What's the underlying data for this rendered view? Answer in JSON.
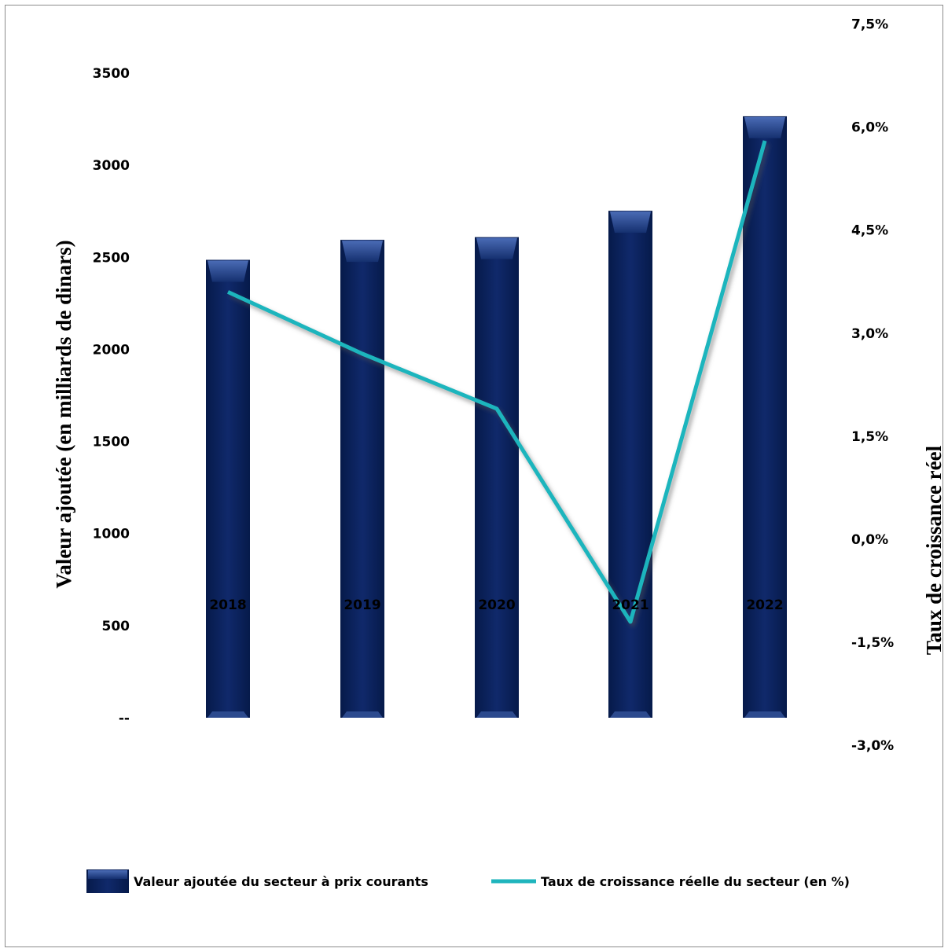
{
  "chart_data": {
    "type": "bar",
    "categories": [
      "2018",
      "2019",
      "2020",
      "2021",
      "2022"
    ],
    "series": [
      {
        "name": "Valeur ajoutée du secteur à prix courants",
        "kind": "bar",
        "axis": "left",
        "color": "#0b2563",
        "values": [
          2520,
          2630,
          2645,
          2790,
          3310
        ]
      },
      {
        "name": "Taux de croissance réelle du secteur (en %)",
        "kind": "line",
        "axis": "right",
        "color": "#1fb5bd",
        "values": [
          3.6,
          2.7,
          1.9,
          -1.2,
          5.8
        ]
      }
    ],
    "ylabel": "Valeur ajoutée (en milliards de dinars)",
    "ylabel_right": "Taux de croissance réel",
    "y_ticks": [
      {
        "value": 0,
        "label": "--"
      },
      {
        "value": 500,
        "label": "500"
      },
      {
        "value": 1000,
        "label": "1000"
      },
      {
        "value": 1500,
        "label": "1500"
      },
      {
        "value": 2000,
        "label": "2000"
      },
      {
        "value": 2500,
        "label": "2500"
      },
      {
        "value": 3000,
        "label": "3000"
      },
      {
        "value": 3500,
        "label": "3500"
      }
    ],
    "y_right_ticks": [
      {
        "value": -3.0,
        "label": "-3,0%"
      },
      {
        "value": -1.5,
        "label": "-1,5%"
      },
      {
        "value": 0.0,
        "label": "0,0%"
      },
      {
        "value": 1.5,
        "label": "1,5%"
      },
      {
        "value": 3.0,
        "label": "3,0%"
      },
      {
        "value": 4.5,
        "label": "4,5%"
      },
      {
        "value": 6.0,
        "label": "6,0%"
      },
      {
        "value": 7.5,
        "label": "7,5%"
      }
    ],
    "ylim": [
      0,
      3500
    ],
    "ylim_right": [
      -3.0,
      7.5
    ],
    "grid": false,
    "legend_position": "bottom"
  }
}
